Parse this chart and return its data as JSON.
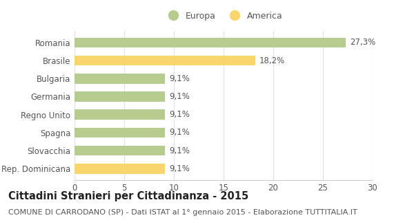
{
  "categories": [
    "Rep. Dominicana",
    "Slovacchia",
    "Spagna",
    "Regno Unito",
    "Germania",
    "Bulgaria",
    "Brasile",
    "Romania"
  ],
  "values": [
    9.1,
    9.1,
    9.1,
    9.1,
    9.1,
    9.1,
    18.2,
    27.3
  ],
  "colors": [
    "#f9d56e",
    "#b5cc8e",
    "#b5cc8e",
    "#b5cc8e",
    "#b5cc8e",
    "#b5cc8e",
    "#f9d56e",
    "#b5cc8e"
  ],
  "labels": [
    "9,1%",
    "9,1%",
    "9,1%",
    "9,1%",
    "9,1%",
    "9,1%",
    "18,2%",
    "27,3%"
  ],
  "xlim": [
    0,
    30
  ],
  "xticks": [
    0,
    5,
    10,
    15,
    20,
    25,
    30
  ],
  "legend_europa_color": "#b5cc8e",
  "legend_america_color": "#f9d56e",
  "title": "Cittadini Stranieri per Cittadinanza - 2015",
  "subtitle": "COMUNE DI CARRODANO (SP) - Dati ISTAT al 1° gennaio 2015 - Elaborazione TUTTITALIA.IT",
  "bg_color": "#ffffff",
  "bar_height": 0.55,
  "label_fontsize": 8.5,
  "tick_fontsize": 8.5,
  "title_fontsize": 10.5,
  "subtitle_fontsize": 8.0,
  "grid_color": "#e0e0e0",
  "text_color": "#555555",
  "title_color": "#222222"
}
